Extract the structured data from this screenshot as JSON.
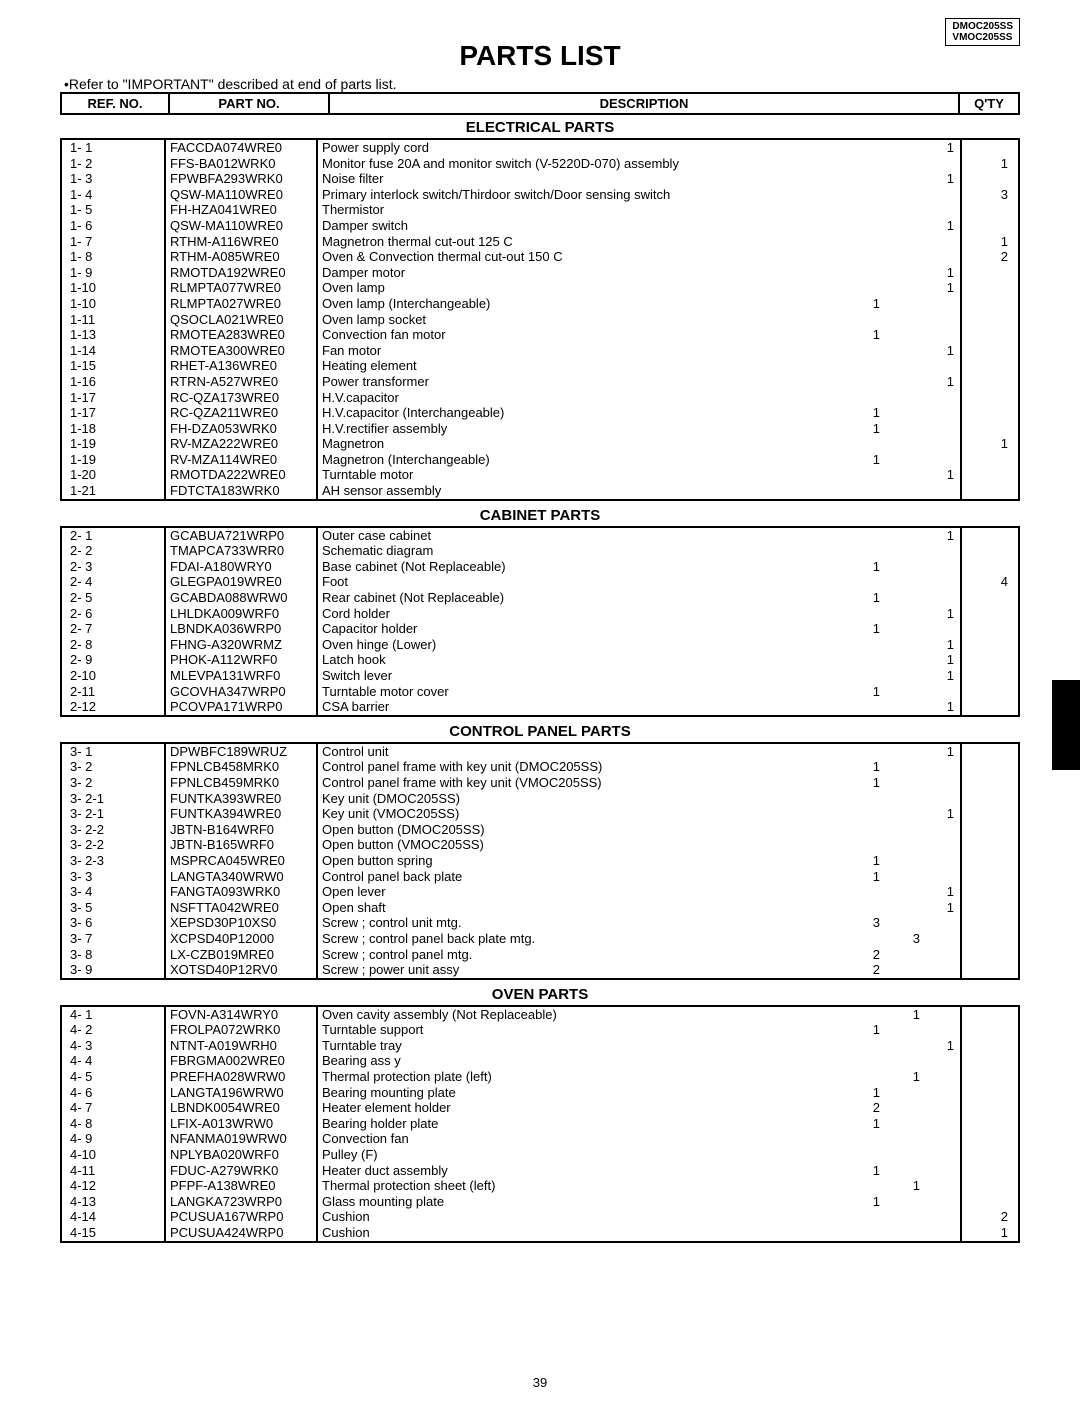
{
  "models": [
    "DMOC205SS",
    "VMOC205SS"
  ],
  "title": "PARTS LIST",
  "note": "•Refer to \"IMPORTANT\" described at end of parts list.",
  "headers": {
    "ref": "REF. NO.",
    "part": "PART NO.",
    "desc": "DESCRIPTION",
    "qty": "Q'TY"
  },
  "page_number": "39",
  "sections": [
    {
      "title": "ELECTRICAL PARTS",
      "rows": [
        {
          "ref": "1- 1",
          "part": "FACCDA074WRE0",
          "desc": "Power supply cord",
          "q": "1"
        },
        {
          "ref": "1- 2",
          "part": "FFS-BA012WRK0",
          "desc": "Monitor fuse 20A and monitor switch (V-5220D-070) assembly",
          "qo": "1"
        },
        {
          "ref": "1- 3",
          "part": "FPWBFA293WRK0",
          "desc": "Noise filter",
          "q": "1"
        },
        {
          "ref": "1- 4",
          "part": "QSW-MA110WRE0",
          "desc": "Primary interlock switch/Thirdoor switch/Door sensing switch",
          "qo": "3"
        },
        {
          "ref": "1- 5",
          "part": "FH-HZA041WRE0",
          "desc": "Thermistor",
          "q": ""
        },
        {
          "ref": "1- 6",
          "part": "QSW-MA110WRE0",
          "desc": "Damper switch",
          "q": "1"
        },
        {
          "ref": "1- 7",
          "part": "RTHM-A116WRE0",
          "desc": "Magnetron thermal cut-out    125                    C",
          "qo": "1"
        },
        {
          "ref": "1- 8",
          "part": "RTHM-A085WRE0",
          "desc": "Oven & Convection thermal cut-out 150                    C",
          "qo": "2"
        },
        {
          "ref": "1- 9",
          "part": "RMOTDA192WRE0",
          "desc": "Damper motor",
          "q": "1"
        },
        {
          "ref": "1-10",
          "part": "RLMPTA077WRE0",
          "desc": "Oven lamp",
          "q": "1"
        },
        {
          "ref": "1-10",
          "part": "RLMPTA027WRE0",
          "desc": "Oven lamp (Interchangeable)",
          "qm": "1"
        },
        {
          "ref": "1-11",
          "part": "QSOCLA021WRE0",
          "desc": "Oven lamp socket",
          "q": ""
        },
        {
          "ref": "1-13",
          "part": "RMOTEA283WRE0",
          "desc": "Convection fan motor",
          "qm": "1"
        },
        {
          "ref": "1-14",
          "part": "RMOTEA300WRE0",
          "desc": "Fan motor",
          "q": "1"
        },
        {
          "ref": "1-15",
          "part": "RHET-A136WRE0",
          "desc": "Heating element",
          "q": ""
        },
        {
          "ref": "1-16",
          "part": "RTRN-A527WRE0",
          "desc": "Power transformer",
          "q": "1"
        },
        {
          "ref": "1-17",
          "part": "RC-QZA173WRE0",
          "desc": "H.V.capacitor",
          "q": ""
        },
        {
          "ref": "1-17",
          "part": "RC-QZA211WRE0",
          "desc": "H.V.capacitor   (Interchangeable)",
          "qm": "1"
        },
        {
          "ref": "1-18",
          "part": "FH-DZA053WRK0",
          "desc": "H.V.rectifier  assembly",
          "qm": "1"
        },
        {
          "ref": "1-19",
          "part": "RV-MZA222WRE0",
          "desc": "Magnetron",
          "qo": "1"
        },
        {
          "ref": "1-19",
          "part": "RV-MZA114WRE0",
          "desc": "Magnetron  (Interchangeable)",
          "qm": "1"
        },
        {
          "ref": "1-20",
          "part": "RMOTDA222WRE0",
          "desc": "Turntable motor",
          "q": "1"
        },
        {
          "ref": "1-21",
          "part": "FDTCTA183WRK0",
          "desc": "AH sensor assembly",
          "q": ""
        }
      ]
    },
    {
      "title": "CABINET PARTS",
      "rows": [
        {
          "ref": "2- 1",
          "part": "GCABUA721WRP0",
          "desc": "Outer case cabinet",
          "q": "1"
        },
        {
          "ref": "2- 2",
          "part": "TMAPCA733WRR0",
          "desc": "Schematic diagram",
          "q": ""
        },
        {
          "ref": "2- 3",
          "part": "FDAI-A180WRY0",
          "desc": "Base cabinet (Not Replaceable)",
          "qm": "1"
        },
        {
          "ref": "2- 4",
          "part": "GLEGPA019WRE0",
          "desc": "Foot",
          "qo": "4"
        },
        {
          "ref": "2- 5",
          "part": "GCABDA088WRW0",
          "desc": "Rear cabinet (Not Replaceable)",
          "qm": "1"
        },
        {
          "ref": "2- 6",
          "part": "LHLDKA009WRF0",
          "desc": "Cord holder",
          "q": "1"
        },
        {
          "ref": "2- 7",
          "part": "LBNDKA036WRP0",
          "desc": "Capacitor holder",
          "qm": "1"
        },
        {
          "ref": "2- 8",
          "part": "FHNG-A320WRMZ",
          "desc": "Oven hinge (Lower)",
          "q": "1"
        },
        {
          "ref": "2- 9",
          "part": "PHOK-A112WRF0",
          "desc": "Latch hook",
          "q": "1"
        },
        {
          "ref": "2-10",
          "part": "MLEVPA131WRF0",
          "desc": "Switch lever",
          "q": "1"
        },
        {
          "ref": "2-11",
          "part": "GCOVHA347WRP0",
          "desc": "Turntable motor cover",
          "qm": "1"
        },
        {
          "ref": "2-12",
          "part": "PCOVPA171WRP0",
          "desc": "CSA barrier",
          "q": "1"
        }
      ]
    },
    {
      "title": "CONTROL PANEL PARTS",
      "rows": [
        {
          "ref": "3- 1",
          "part": "DPWBFC189WRUZ",
          "desc": "Control unit",
          "q": "1"
        },
        {
          "ref": "3- 2",
          "part": "FPNLCB458MRK0",
          "desc": "Control panel frame with key unit (DMOC205SS)",
          "qm": "1"
        },
        {
          "ref": "3- 2",
          "part": "FPNLCB459MRK0",
          "desc": "Control panel frame with key unit (VMOC205SS)",
          "qm": "1"
        },
        {
          "ref": "3- 2-1",
          "part": "FUNTKA393WRE0",
          "desc": "Key unit (DMOC205SS)",
          "q": ""
        },
        {
          "ref": "3- 2-1",
          "part": "FUNTKA394WRE0",
          "desc": "Key unit (VMOC205SS)",
          "q": "1"
        },
        {
          "ref": "3- 2-2",
          "part": "JBTN-B164WRF0",
          "desc": "Open button (DMOC205SS)",
          "q": ""
        },
        {
          "ref": "3- 2-2",
          "part": "JBTN-B165WRF0",
          "desc": "Open button (VMOC205SS)",
          "q": ""
        },
        {
          "ref": "3- 2-3",
          "part": "MSPRCA045WRE0",
          "desc": "Open button spring",
          "qm": "1"
        },
        {
          "ref": "3- 3",
          "part": "LANGTA340WRW0",
          "desc": "Control panel back plate",
          "qm": "1"
        },
        {
          "ref": "3- 4",
          "part": "FANGTA093WRK0",
          "desc": "Open lever",
          "q": "1"
        },
        {
          "ref": "3- 5",
          "part": "NSFTTA042WRE0",
          "desc": "Open shaft",
          "q": "1"
        },
        {
          "ref": "3- 6",
          "part": "XEPSD30P10XS0",
          "desc": "Screw ; control unit mtg.",
          "qm": "3"
        },
        {
          "ref": "3- 7",
          "part": "XCPSD40P12000",
          "desc": "Screw ; control panel back plate mtg.",
          "qm2": "3"
        },
        {
          "ref": "3- 8",
          "part": "LX-CZB019MRE0",
          "desc": "Screw ; control panel mtg.",
          "qm": "2"
        },
        {
          "ref": "3- 9",
          "part": "XOTSD40P12RV0",
          "desc": "Screw ; power unit assy",
          "qm": "2"
        }
      ]
    },
    {
      "title": "OVEN PARTS",
      "rows": [
        {
          "ref": "4- 1",
          "part": "FOVN-A314WRY0",
          "desc": "Oven cavity assembly (Not Replaceable)",
          "qm2": "1"
        },
        {
          "ref": "4- 2",
          "part": "FROLPA072WRK0",
          "desc": "Turntable support",
          "qm": "1"
        },
        {
          "ref": "4- 3",
          "part": "NTNT-A019WRH0",
          "desc": "Turntable tray",
          "q": "1"
        },
        {
          "ref": "4- 4",
          "part": "FBRGMA002WRE0",
          "desc": "Bearing ass y",
          "q": ""
        },
        {
          "ref": "4- 5",
          "part": "PREFHA028WRW0",
          "desc": "Thermal protection plate (left)",
          "qm2": "1"
        },
        {
          "ref": "4- 6",
          "part": "LANGTA196WRW0",
          "desc": "Bearing mounting plate",
          "qm": "1"
        },
        {
          "ref": "4- 7",
          "part": "LBNDK0054WRE0",
          "desc": "Heater element holder",
          "qm": "2"
        },
        {
          "ref": "4- 8",
          "part": "LFIX-A013WRW0",
          "desc": "Bearing holder plate",
          "qm": "1"
        },
        {
          "ref": "4- 9",
          "part": "NFANMA019WRW0",
          "desc": "Convection fan",
          "q": ""
        },
        {
          "ref": "4-10",
          "part": "NPLYBA020WRF0",
          "desc": "Pulley (F)",
          "q": ""
        },
        {
          "ref": "4-11",
          "part": "FDUC-A279WRK0",
          "desc": "Heater duct assembly",
          "qm": "1"
        },
        {
          "ref": "4-12",
          "part": "PFPF-A138WRE0",
          "desc": "Thermal protection sheet (left)",
          "qm2": "1"
        },
        {
          "ref": "4-13",
          "part": "LANGKA723WRP0",
          "desc": "Glass mounting plate",
          "qm": "1"
        },
        {
          "ref": "4-14",
          "part": "PCUSUA167WRP0",
          "desc": "Cushion",
          "qo": "2"
        },
        {
          "ref": "4-15",
          "part": "PCUSUA424WRP0",
          "desc": "Cushion",
          "qo": "1"
        }
      ]
    }
  ]
}
